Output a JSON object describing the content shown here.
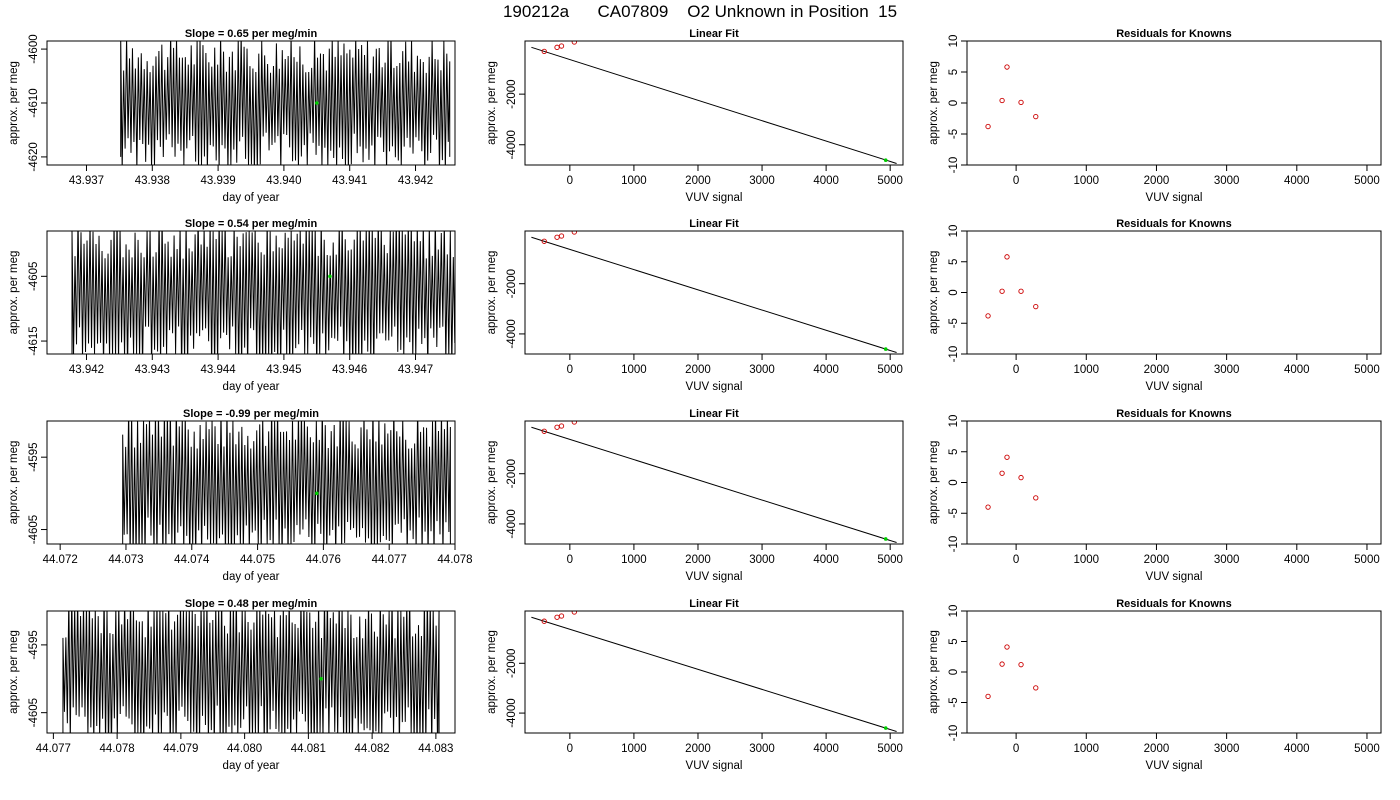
{
  "figure": {
    "title": "190212a      CA07809    O2 Unknown in Position  15"
  },
  "colors": {
    "trace": "#000000",
    "unknown_point": "#00cc00",
    "known_point": "#cc0000"
  },
  "chart_data": [
    {
      "type": "line",
      "title": "Slope =  0.65  per meg/min",
      "xlabel": "day of year",
      "ylabel": "approx. per meg",
      "xlim": [
        43.9364,
        43.9426
      ],
      "ylim": [
        -4621.5,
        -4598.5
      ],
      "xticks": [
        "43.937",
        "43.938",
        "43.939",
        "43.940",
        "43.941",
        "43.942"
      ],
      "xtick_values": [
        43.937,
        43.938,
        43.939,
        43.94,
        43.941,
        43.942
      ],
      "yticks": [
        "-4620",
        "-4610",
        "-4600"
      ],
      "ytick_values": [
        -4620,
        -4610,
        -4600
      ],
      "trace": {
        "x_start": 43.93752,
        "x_end": 43.94252,
        "cycles": 112,
        "low": -4620,
        "high": -4600
      },
      "unknown_point": {
        "x": 43.9405,
        "y": -4610
      }
    },
    {
      "type": "scatter",
      "title": "Linear Fit",
      "xlabel": "VUV signal",
      "ylabel": "approx. per meg",
      "xlim": [
        -700,
        5200
      ],
      "ylim": [
        -4800,
        100
      ],
      "xticks": [
        "0",
        "1000",
        "2000",
        "3000",
        "4000",
        "5000"
      ],
      "xtick_values": [
        0,
        1000,
        2000,
        3000,
        4000,
        5000
      ],
      "yticks": [
        "-4000",
        "-2000"
      ],
      "ytick_values": [
        -4000,
        -2000
      ],
      "fit_line": {
        "x": [
          -600,
          5100
        ],
        "y": [
          -150,
          -4740
        ]
      },
      "known_points": {
        "x": [
          -400,
          -200,
          -130,
          70,
          280
        ],
        "y": [
          -310,
          -150,
          -100,
          60,
          230
        ]
      },
      "unknown_point": {
        "x": 4930,
        "y": -4610
      }
    },
    {
      "type": "scatter",
      "title": "Residuals for Knowns",
      "xlabel": "VUV signal",
      "ylabel": "approx. per meg",
      "xlim": [
        -700,
        5200
      ],
      "ylim": [
        -10,
        10
      ],
      "xticks": [
        "0",
        "1000",
        "2000",
        "3000",
        "4000",
        "5000"
      ],
      "xtick_values": [
        0,
        1000,
        2000,
        3000,
        4000,
        5000
      ],
      "yticks": [
        "-10",
        "-5",
        "0",
        "5",
        "10"
      ],
      "ytick_values": [
        -10,
        -5,
        0,
        5,
        10
      ],
      "known_points": {
        "x": [
          -400,
          -200,
          -130,
          70,
          280
        ],
        "y": [
          -3.8,
          0.4,
          5.8,
          0.1,
          -2.2
        ]
      }
    },
    {
      "type": "line",
      "title": "Slope =  0.54  per meg/min",
      "xlabel": "day of year",
      "ylabel": "approx. per meg",
      "xlim": [
        43.9414,
        43.9476
      ],
      "ylim": [
        -4617,
        -4598
      ],
      "xticks": [
        "43.942",
        "43.943",
        "43.944",
        "43.945",
        "43.946",
        "43.947"
      ],
      "xtick_values": [
        43.942,
        43.943,
        43.944,
        43.945,
        43.946,
        43.947
      ],
      "yticks": [
        "-4615",
        "-4605"
      ],
      "ytick_values": [
        -4615,
        -4605
      ],
      "trace": {
        "x_start": 43.94178,
        "x_end": 43.94762,
        "cycles": 128,
        "low": -4617,
        "high": -4598
      },
      "unknown_point": {
        "x": 43.9457,
        "y": -4605
      }
    },
    {
      "type": "scatter",
      "title": "Linear Fit",
      "xlabel": "VUV signal",
      "ylabel": "approx. per meg",
      "xlim": [
        -700,
        5200
      ],
      "ylim": [
        -4800,
        100
      ],
      "xticks": [
        "0",
        "1000",
        "2000",
        "3000",
        "4000",
        "5000"
      ],
      "xtick_values": [
        0,
        1000,
        2000,
        3000,
        4000,
        5000
      ],
      "yticks": [
        "-4000",
        "-2000"
      ],
      "ytick_values": [
        -4000,
        -2000
      ],
      "fit_line": {
        "x": [
          -600,
          5100
        ],
        "y": [
          -150,
          -4740
        ]
      },
      "known_points": {
        "x": [
          -400,
          -200,
          -130,
          70,
          280
        ],
        "y": [
          -310,
          -150,
          -100,
          60,
          230
        ]
      },
      "unknown_point": {
        "x": 4930,
        "y": -4605
      }
    },
    {
      "type": "scatter",
      "title": "Residuals for Knowns",
      "xlabel": "VUV signal",
      "ylabel": "approx. per meg",
      "xlim": [
        -700,
        5200
      ],
      "ylim": [
        -10,
        10
      ],
      "xticks": [
        "0",
        "1000",
        "2000",
        "3000",
        "4000",
        "5000"
      ],
      "xtick_values": [
        0,
        1000,
        2000,
        3000,
        4000,
        5000
      ],
      "yticks": [
        "-10",
        "-5",
        "0",
        "5",
        "10"
      ],
      "ytick_values": [
        -10,
        -5,
        0,
        5,
        10
      ],
      "known_points": {
        "x": [
          -400,
          -200,
          -130,
          70,
          280
        ],
        "y": [
          -3.8,
          0.2,
          5.8,
          0.2,
          -2.3
        ]
      }
    },
    {
      "type": "line",
      "title": "Slope =  -0.99  per meg/min",
      "xlabel": "day of year",
      "ylabel": "approx. per meg",
      "xlim": [
        44.0718,
        44.078
      ],
      "ylim": [
        -4607,
        -4590
      ],
      "xticks": [
        "44.072",
        "44.073",
        "44.074",
        "44.075",
        "44.076",
        "44.077",
        "44.078"
      ],
      "xtick_values": [
        44.072,
        44.073,
        44.074,
        44.075,
        44.076,
        44.077,
        44.078
      ],
      "yticks": [
        "-4605",
        "-4595"
      ],
      "ytick_values": [
        -4605,
        -4595
      ],
      "trace": {
        "x_start": 44.07295,
        "x_end": 44.07793,
        "cycles": 110,
        "low": -4607,
        "high": -4590
      },
      "unknown_point": {
        "x": 44.0759,
        "y": -4600
      }
    },
    {
      "type": "scatter",
      "title": "Linear Fit",
      "xlabel": "VUV signal",
      "ylabel": "approx. per meg",
      "xlim": [
        -700,
        5200
      ],
      "ylim": [
        -4800,
        100
      ],
      "xticks": [
        "0",
        "1000",
        "2000",
        "3000",
        "4000",
        "5000"
      ],
      "xtick_values": [
        0,
        1000,
        2000,
        3000,
        4000,
        5000
      ],
      "yticks": [
        "-4000",
        "-2000"
      ],
      "ytick_values": [
        -4000,
        -2000
      ],
      "fit_line": {
        "x": [
          -600,
          5100
        ],
        "y": [
          -150,
          -4740
        ]
      },
      "known_points": {
        "x": [
          -400,
          -200,
          -130,
          70,
          280
        ],
        "y": [
          -310,
          -150,
          -100,
          60,
          230
        ]
      },
      "unknown_point": {
        "x": 4930,
        "y": -4600
      }
    },
    {
      "type": "scatter",
      "title": "Residuals for Knowns",
      "xlabel": "VUV signal",
      "ylabel": "approx. per meg",
      "xlim": [
        -700,
        5200
      ],
      "ylim": [
        -10,
        10
      ],
      "xticks": [
        "0",
        "1000",
        "2000",
        "3000",
        "4000",
        "5000"
      ],
      "xtick_values": [
        0,
        1000,
        2000,
        3000,
        4000,
        5000
      ],
      "yticks": [
        "-10",
        "-5",
        "0",
        "5",
        "10"
      ],
      "ytick_values": [
        -10,
        -5,
        0,
        5,
        10
      ],
      "known_points": {
        "x": [
          -400,
          -200,
          -130,
          70,
          280
        ],
        "y": [
          -4.0,
          1.5,
          4.1,
          0.8,
          -2.5
        ]
      }
    },
    {
      "type": "line",
      "title": "Slope =  0.48  per meg/min",
      "xlabel": "day of year",
      "ylabel": "approx. per meg",
      "xlim": [
        44.0769,
        44.0833
      ],
      "ylim": [
        -4608,
        -4590
      ],
      "xticks": [
        "44.077",
        "44.078",
        "44.079",
        "44.080",
        "44.081",
        "44.082",
        "44.083"
      ],
      "xtick_values": [
        44.077,
        44.078,
        44.079,
        44.08,
        44.081,
        44.082,
        44.083
      ],
      "yticks": [
        "-4605",
        "-4595"
      ],
      "ytick_values": [
        -4605,
        -4595
      ],
      "trace": {
        "x_start": 44.07715,
        "x_end": 44.08305,
        "cycles": 128,
        "low": -4608,
        "high": -4590
      },
      "unknown_point": {
        "x": 44.0812,
        "y": -4600
      }
    },
    {
      "type": "scatter",
      "title": "Linear Fit",
      "xlabel": "VUV signal",
      "ylabel": "approx. per meg",
      "xlim": [
        -700,
        5200
      ],
      "ylim": [
        -4800,
        100
      ],
      "xticks": [
        "0",
        "1000",
        "2000",
        "3000",
        "4000",
        "5000"
      ],
      "xtick_values": [
        0,
        1000,
        2000,
        3000,
        4000,
        5000
      ],
      "yticks": [
        "-4000",
        "-2000"
      ],
      "ytick_values": [
        -4000,
        -2000
      ],
      "fit_line": {
        "x": [
          -600,
          5100
        ],
        "y": [
          -150,
          -4740
        ]
      },
      "known_points": {
        "x": [
          -400,
          -200,
          -130,
          70,
          280
        ],
        "y": [
          -310,
          -150,
          -100,
          60,
          230
        ]
      },
      "unknown_point": {
        "x": 4930,
        "y": -4600
      }
    },
    {
      "type": "scatter",
      "title": "Residuals for Knowns",
      "xlabel": "VUV signal",
      "ylabel": "approx. per meg",
      "xlim": [
        -700,
        5200
      ],
      "ylim": [
        -10,
        10
      ],
      "xticks": [
        "0",
        "1000",
        "2000",
        "3000",
        "4000",
        "5000"
      ],
      "xtick_values": [
        0,
        1000,
        2000,
        3000,
        4000,
        5000
      ],
      "yticks": [
        "-10",
        "-5",
        "0",
        "5",
        "10"
      ],
      "ytick_values": [
        -10,
        -5,
        0,
        5,
        10
      ],
      "known_points": {
        "x": [
          -400,
          -200,
          -130,
          70,
          280
        ],
        "y": [
          -4.0,
          1.3,
          4.1,
          1.2,
          -2.6
        ]
      }
    }
  ]
}
